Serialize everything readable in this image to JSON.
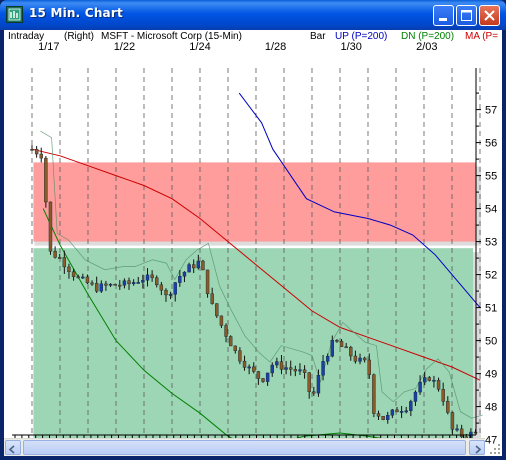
{
  "window": {
    "title": "15 Min. Chart",
    "icon": "chart-window-icon",
    "buttons": [
      "minimize-icon",
      "maximize-icon",
      "close-icon"
    ]
  },
  "header": {
    "mode": "Intraday",
    "axis_side": "(Right)",
    "symbol": "MSFT - Microsoft Corp  (15-Min)",
    "style": "Bar",
    "up_label": "UP (P=200)",
    "dn_label": "DN (P=200)",
    "ma_label": "MA (P="
  },
  "colors": {
    "up": "#0000C0",
    "dn": "#008000",
    "ma": "#CC0000",
    "upper_band": "#FF9C9C",
    "lower_band": "#9CD6B5"
  },
  "chart_data": {
    "type": "line",
    "subtype": "ohlc-bars with moving-average channel",
    "title": "MSFT - Microsoft Corp  (15-Min)",
    "x_tick_labels": [
      "1/17",
      "1/22",
      "1/24",
      "1/28",
      "1/30",
      "2/03"
    ],
    "y_axis_side": "right",
    "ylim": [
      46.7,
      57.9
    ],
    "y_ticks": [
      47,
      48,
      49,
      50,
      51,
      52,
      53,
      54,
      55,
      56,
      57
    ],
    "grid": "vertical dashed lines",
    "series": [
      {
        "name": "UP (P=200)",
        "color": "#0000C0",
        "points": [
          [
            7.4,
            57.5
          ],
          [
            8.2,
            56.6
          ],
          [
            8.6,
            55.8
          ],
          [
            9.0,
            55.3
          ],
          [
            9.8,
            54.3
          ],
          [
            10.8,
            53.9
          ],
          [
            12.0,
            53.7
          ],
          [
            12.8,
            53.5
          ],
          [
            13.6,
            53.2
          ],
          [
            14.4,
            52.6
          ],
          [
            15.2,
            51.8
          ],
          [
            16.0,
            51.0
          ]
        ]
      },
      {
        "name": "MA (P=",
        "color": "#CC0000",
        "points": [
          [
            0.0,
            55.8
          ],
          [
            1.0,
            55.6
          ],
          [
            2.0,
            55.3
          ],
          [
            3.0,
            55.0
          ],
          [
            4.0,
            54.7
          ],
          [
            5.0,
            54.3
          ],
          [
            6.0,
            53.7
          ],
          [
            7.0,
            53.0
          ],
          [
            8.0,
            52.3
          ],
          [
            9.0,
            51.6
          ],
          [
            10.0,
            50.9
          ],
          [
            11.0,
            50.4
          ],
          [
            12.0,
            50.1
          ],
          [
            13.0,
            49.8
          ],
          [
            14.0,
            49.5
          ],
          [
            15.0,
            49.2
          ],
          [
            16.0,
            48.8
          ]
        ]
      },
      {
        "name": "DN (P=200)",
        "color": "#008000",
        "points": [
          [
            0.4,
            54.0
          ],
          [
            1.0,
            52.9
          ],
          [
            2.0,
            51.4
          ],
          [
            3.0,
            50.0
          ],
          [
            4.0,
            49.1
          ],
          [
            5.0,
            48.4
          ],
          [
            6.0,
            47.8
          ],
          [
            7.0,
            47.1
          ],
          [
            7.5,
            46.9
          ],
          [
            8.5,
            46.8
          ],
          [
            9.7,
            47.1
          ],
          [
            11.0,
            47.2
          ],
          [
            12.0,
            47.1
          ],
          [
            13.5,
            46.9
          ],
          [
            15.0,
            46.8
          ],
          [
            16.0,
            46.75
          ]
        ]
      },
      {
        "name": "price",
        "color": "#000000",
        "points": [
          [
            0.0,
            55.8
          ],
          [
            0.4,
            55.6
          ],
          [
            0.6,
            52.7
          ],
          [
            1.0,
            52.5
          ],
          [
            1.6,
            51.9
          ],
          [
            2.3,
            51.6
          ],
          [
            3.0,
            51.7
          ],
          [
            3.4,
            51.7
          ],
          [
            4.0,
            51.9
          ],
          [
            4.5,
            51.8
          ],
          [
            4.8,
            51.3
          ],
          [
            5.2,
            51.9
          ],
          [
            5.6,
            52.2
          ],
          [
            6.0,
            52.4
          ],
          [
            6.4,
            51.1
          ],
          [
            6.8,
            50.4
          ],
          [
            7.3,
            49.6
          ],
          [
            7.8,
            49.1
          ],
          [
            8.2,
            48.8
          ],
          [
            8.6,
            49.3
          ],
          [
            9.0,
            49.2
          ],
          [
            9.4,
            49.1
          ],
          [
            9.7,
            49.0
          ],
          [
            10.0,
            48.2
          ],
          [
            10.4,
            49.4
          ],
          [
            10.8,
            50.0
          ],
          [
            11.2,
            49.7
          ],
          [
            11.6,
            49.4
          ],
          [
            12.0,
            49.3
          ],
          [
            12.2,
            47.9
          ],
          [
            12.6,
            47.6
          ],
          [
            13.0,
            47.9
          ],
          [
            13.4,
            48.0
          ],
          [
            13.8,
            48.6
          ],
          [
            14.2,
            48.9
          ],
          [
            14.6,
            48.5
          ],
          [
            15.0,
            47.3
          ],
          [
            15.4,
            47.1
          ],
          [
            15.8,
            47.2
          ]
        ]
      }
    ],
    "bands": [
      {
        "name": "upper",
        "from": 53.0,
        "to": 55.4,
        "color": "#FF9C9C"
      },
      {
        "name": "lower",
        "from": 47.0,
        "to": 52.8,
        "color": "#9CD6B5"
      }
    ]
  }
}
